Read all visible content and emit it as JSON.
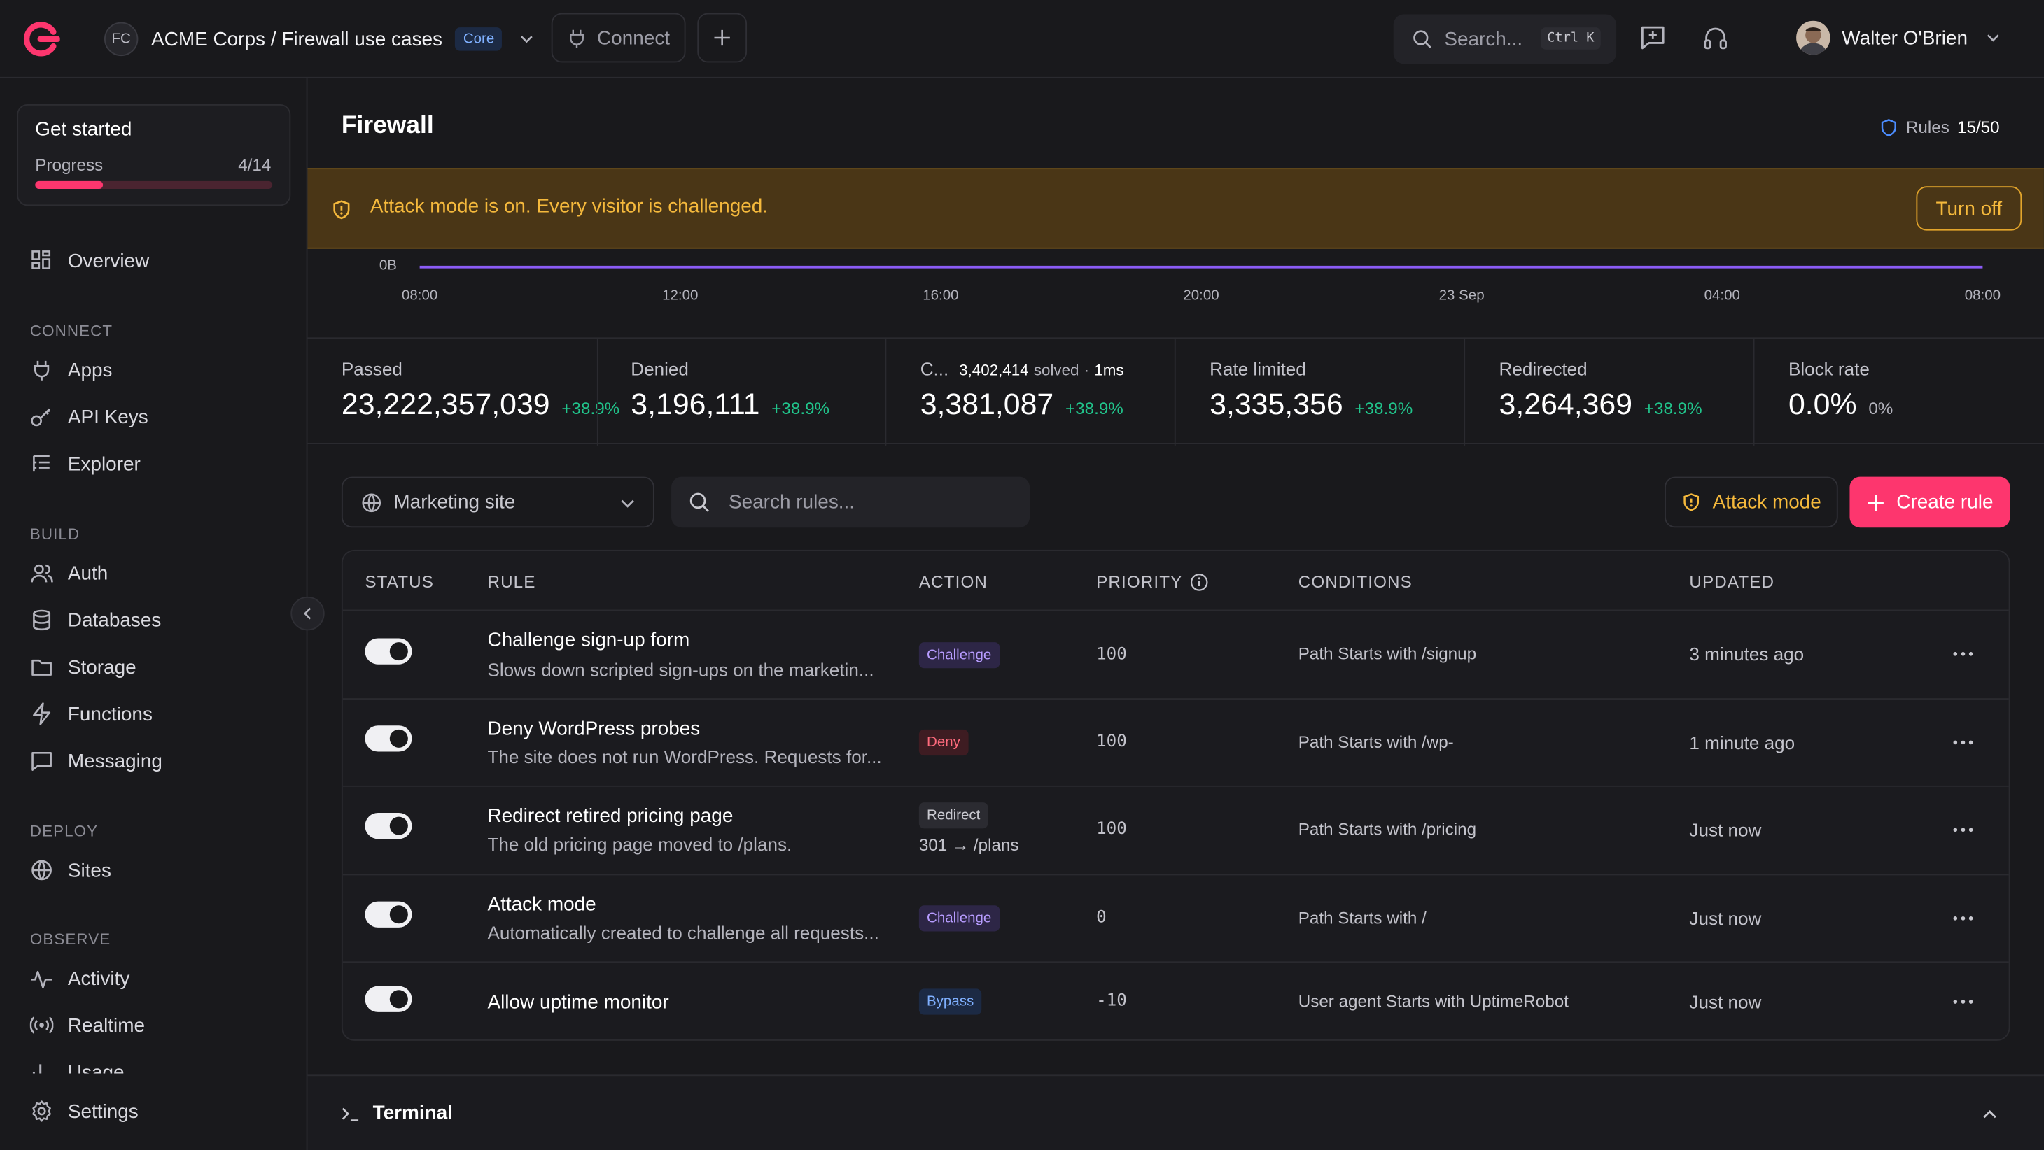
{
  "header": {
    "org_initials": "FC",
    "breadcrumb": "ACME Corps / Firewall use cases",
    "plan_badge": "Core",
    "connect_label": "Connect",
    "search_placeholder": "Search...",
    "search_shortcut": "Ctrl K",
    "user_name": "Walter O'Brien"
  },
  "sidebar": {
    "get_started": {
      "title": "Get started",
      "progress_label": "Progress",
      "count": "4/14",
      "done": 4,
      "total": 14
    },
    "overview": "Overview",
    "sections": {
      "connect": "CONNECT",
      "build": "BUILD",
      "deploy": "DEPLOY",
      "observe": "OBSERVE"
    },
    "connect_items": [
      "Apps",
      "API Keys",
      "Explorer"
    ],
    "build_items": [
      "Auth",
      "Databases",
      "Storage",
      "Functions",
      "Messaging"
    ],
    "deploy_items": [
      "Sites"
    ],
    "observe_items": [
      "Activity",
      "Realtime",
      "Usage"
    ],
    "settings": "Settings"
  },
  "page": {
    "title": "Firewall",
    "rules_label": "Rules",
    "rules_count": "15/50"
  },
  "banner": {
    "message": "Attack mode is on. Every visitor is challenged.",
    "action": "Turn off"
  },
  "chart_data": {
    "type": "line",
    "y_tick": "0B",
    "x": [
      "08:00",
      "12:00",
      "16:00",
      "20:00",
      "23 Sep",
      "04:00",
      "08:00"
    ],
    "series": [
      {
        "values": [
          0,
          0,
          0,
          0,
          0,
          0,
          0
        ],
        "color": "#8b5cf6"
      }
    ]
  },
  "stats": {
    "passed": {
      "label": "Passed",
      "value": "23,222,357,039",
      "change": "+38.9%"
    },
    "denied": {
      "label": "Denied",
      "value": "3,196,111",
      "change": "+38.9%"
    },
    "challenged": {
      "label": "C...",
      "solved": "3,402,414",
      "solved_label": "solved",
      "latency": "1ms",
      "value": "3,381,087",
      "change": "+38.9%"
    },
    "rate_limited": {
      "label": "Rate limited",
      "value": "3,335,356",
      "change": "+38.9%"
    },
    "redirected": {
      "label": "Redirected",
      "value": "3,264,369",
      "change": "+38.9%"
    },
    "block_rate": {
      "label": "Block rate",
      "value": "0.0%",
      "change": "0%"
    }
  },
  "toolbar": {
    "site": "Marketing site",
    "search_placeholder": "Search rules...",
    "attack_mode": "Attack mode",
    "create_rule": "Create rule"
  },
  "table": {
    "headers": {
      "status": "STATUS",
      "rule": "RULE",
      "action": "ACTION",
      "priority": "PRIORITY",
      "conditions": "CONDITIONS",
      "updated": "UPDATED"
    },
    "rows": [
      {
        "enabled": true,
        "name": "Challenge sign-up form",
        "description": "Slows down scripted sign-ups on the marketin...",
        "action": "Challenge",
        "action_extra": "",
        "priority": "100",
        "conditions": "Path Starts with /signup",
        "updated": "3 minutes ago"
      },
      {
        "enabled": true,
        "name": "Deny WordPress probes",
        "description": "The site does not run WordPress. Requests for...",
        "action": "Deny",
        "action_extra": "",
        "priority": "100",
        "conditions": "Path Starts with /wp-",
        "updated": "1 minute ago"
      },
      {
        "enabled": true,
        "name": "Redirect retired pricing page",
        "description": "The old pricing page moved to /plans.",
        "action": "Redirect",
        "action_extra": "301 → /plans",
        "priority": "100",
        "conditions": "Path Starts with /pricing",
        "updated": "Just now"
      },
      {
        "enabled": true,
        "name": "Attack mode",
        "description": "Automatically created to challenge all requests...",
        "action": "Challenge",
        "action_extra": "",
        "priority": "0",
        "conditions": "Path Starts with /",
        "updated": "Just now"
      },
      {
        "enabled": true,
        "name": "Allow uptime monitor",
        "description": "",
        "action": "Bypass",
        "action_extra": "",
        "priority": "-10",
        "conditions": "User agent Starts with UptimeRobot",
        "updated": "Just now"
      }
    ]
  },
  "terminal": {
    "label": "Terminal"
  },
  "colors": {
    "accent": "#fd366e",
    "warning": "#f5b93c",
    "positive": "#21c48b",
    "chart_line": "#8b5cf6"
  }
}
